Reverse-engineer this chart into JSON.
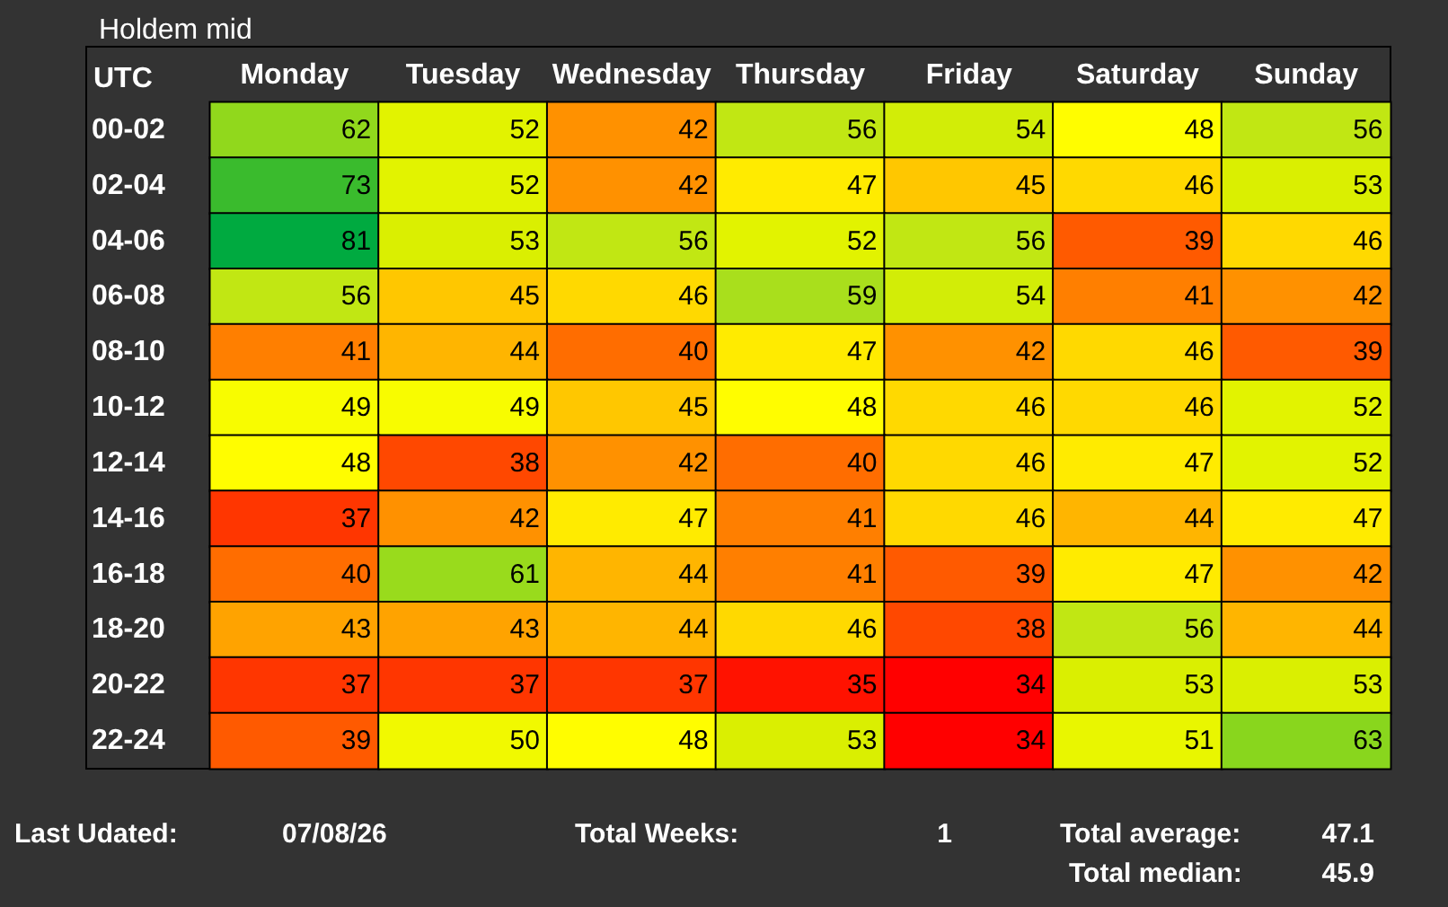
{
  "chart_data": {
    "type": "heatmap",
    "title": "Holdem mid",
    "ylabel": "UTC",
    "categories": [
      "Monday",
      "Tuesday",
      "Wednesday",
      "Thursday",
      "Friday",
      "Saturday",
      "Sunday"
    ],
    "y_categories": [
      "00-02",
      "02-04",
      "04-06",
      "06-08",
      "08-10",
      "10-12",
      "12-14",
      "14-16",
      "16-18",
      "18-20",
      "20-22",
      "22-24"
    ],
    "cells": [
      [
        62,
        52,
        42,
        56,
        54,
        48,
        56
      ],
      [
        73,
        52,
        42,
        47,
        45,
        46,
        53
      ],
      [
        81,
        53,
        56,
        52,
        56,
        39,
        46
      ],
      [
        56,
        45,
        46,
        59,
        54,
        41,
        42
      ],
      [
        41,
        44,
        40,
        47,
        42,
        46,
        39
      ],
      [
        49,
        49,
        45,
        48,
        46,
        46,
        52
      ],
      [
        48,
        38,
        42,
        40,
        46,
        47,
        52
      ],
      [
        37,
        42,
        47,
        41,
        46,
        44,
        47
      ],
      [
        40,
        61,
        44,
        41,
        39,
        47,
        42
      ],
      [
        43,
        43,
        44,
        46,
        38,
        56,
        44
      ],
      [
        37,
        37,
        37,
        35,
        34,
        53,
        53
      ],
      [
        39,
        50,
        48,
        53,
        34,
        51,
        63
      ]
    ],
    "data_labels": true,
    "annotations": [
      "Last Udated:",
      "07/08/26",
      "Total Weeks:",
      "1",
      "Total average:",
      "47.1",
      "Total median:",
      "45.9"
    ]
  }
}
